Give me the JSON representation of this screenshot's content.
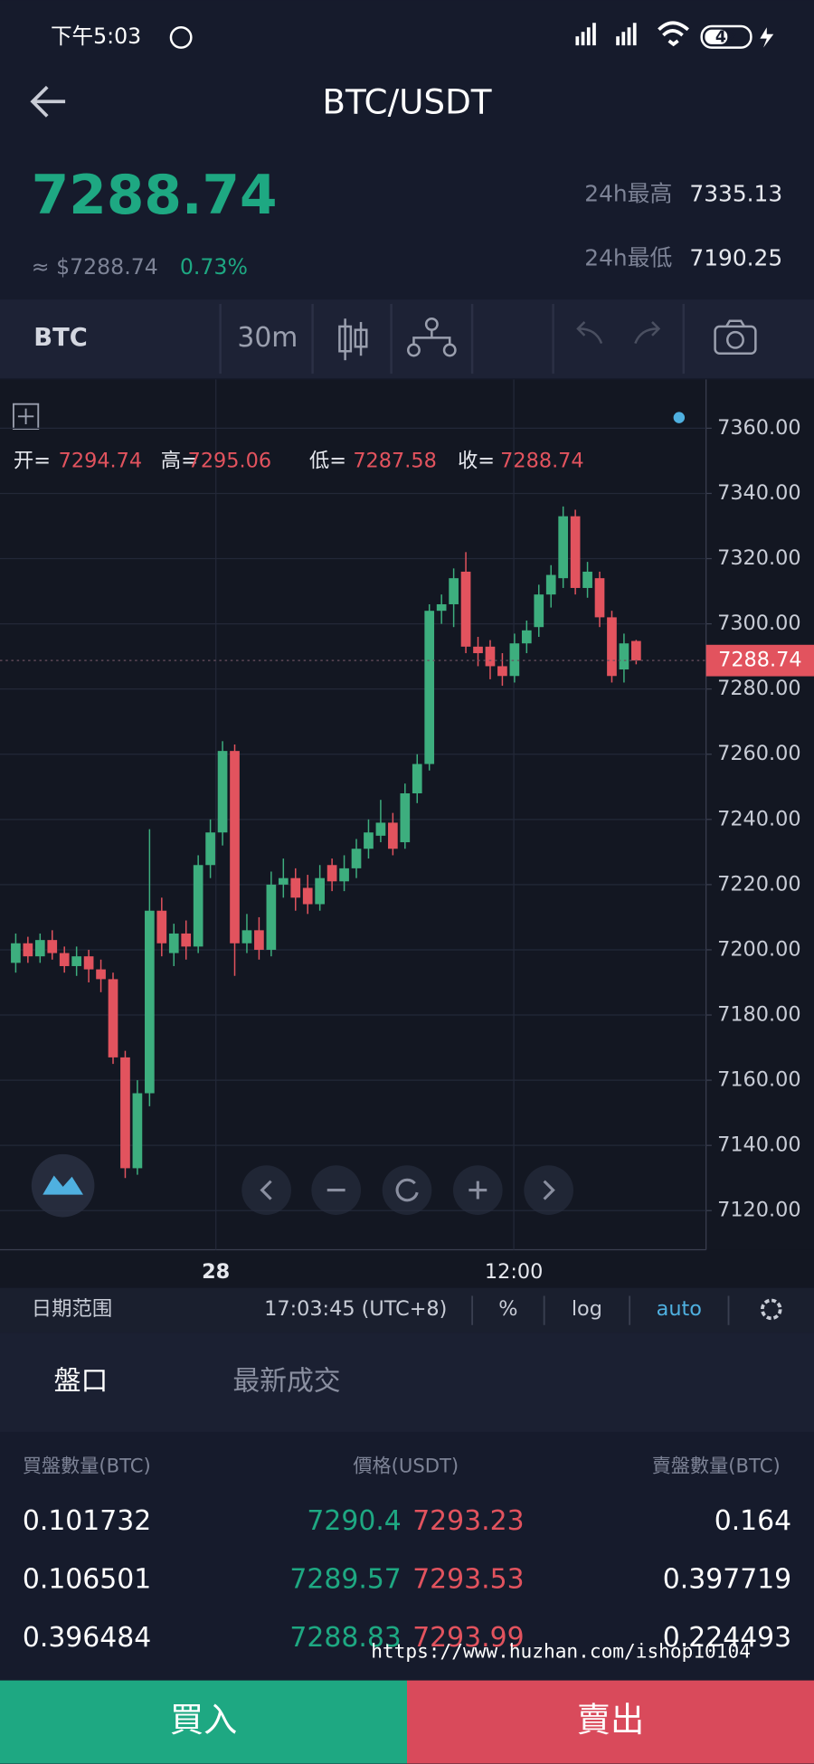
{
  "status_bar": {
    "time": "下午5:03",
    "battery": "42"
  },
  "header": {
    "title": "BTC/USDT"
  },
  "ticker": {
    "price": "7288.74",
    "usd": "≈ $7288.74",
    "change": "0.73%",
    "high_label": "24h最高",
    "high": "7335.13",
    "low_label": "24h最低",
    "low": "7190.25"
  },
  "toolbar": {
    "symbol": "BTC",
    "interval": "30m"
  },
  "chart": {
    "type": "candlestick",
    "ohlc_labels": [
      "开=",
      "高=",
      "低=",
      "收="
    ],
    "ohlc_values": [
      7294.74,
      7295.06,
      7287.58,
      7288.74
    ],
    "last_price": 7288.74,
    "ylim": [
      7108,
      7375
    ],
    "yticks": [
      {
        "value": 7120,
        "label": "7120.00"
      },
      {
        "value": 7140,
        "label": "7140.00"
      },
      {
        "value": 7160,
        "label": "7160.00"
      },
      {
        "value": 7180,
        "label": "7180.00"
      },
      {
        "value": 7200,
        "label": "7200.00"
      },
      {
        "value": 7220,
        "label": "7220.00"
      },
      {
        "value": 7240,
        "label": "7240.00"
      },
      {
        "value": 7260,
        "label": "7260.00"
      },
      {
        "value": 7280,
        "label": "7280.00"
      },
      {
        "value": 7300,
        "label": "7300.00"
      },
      {
        "value": 7320,
        "label": "7320.00"
      },
      {
        "value": 7340,
        "label": "7340.00"
      },
      {
        "value": 7360,
        "label": "7360.00"
      }
    ],
    "x_labels": [
      "28",
      "12:00"
    ],
    "up_color": "#3dae7e",
    "down_color": "#e2535e",
    "candles": {
      "open": [
        7196,
        7202,
        7198,
        7203,
        7199,
        7195,
        7198,
        7194,
        7191,
        7167,
        7133,
        7156,
        7212,
        7199,
        7205,
        7201,
        7226,
        7236,
        7261,
        7202,
        7206,
        7200,
        7220,
        7222,
        7219,
        7214,
        7226,
        7221,
        7225,
        7231,
        7235,
        7239,
        7233,
        7248,
        7257,
        7304,
        7306,
        7316,
        7293,
        7293,
        7287,
        7284,
        7294,
        7299,
        7309,
        7314,
        7333,
        7311,
        7314,
        7302,
        7286,
        7294.74
      ],
      "close": [
        7202,
        7198,
        7203,
        7199,
        7195,
        7198,
        7194,
        7191,
        7167,
        7133,
        7156,
        7212,
        7202,
        7205,
        7201,
        7226,
        7236,
        7261,
        7202,
        7206,
        7200,
        7220,
        7222,
        7216,
        7214,
        7222,
        7221,
        7225,
        7231,
        7236,
        7239,
        7231,
        7248,
        7257,
        7304,
        7306,
        7314,
        7293,
        7291,
        7287,
        7284,
        7294,
        7298,
        7309,
        7315,
        7333,
        7311,
        7316,
        7302,
        7284,
        7294,
        7288.74
      ],
      "high": [
        7205,
        7204,
        7205,
        7206,
        7201,
        7201,
        7200,
        7197,
        7193,
        7169,
        7160,
        7237,
        7216,
        7208,
        7209,
        7229,
        7240,
        7264,
        7263,
        7211,
        7210,
        7224,
        7228,
        7225,
        7223,
        7226,
        7228,
        7229,
        7234,
        7240,
        7246,
        7242,
        7251,
        7260,
        7306,
        7309,
        7317,
        7322,
        7296,
        7295,
        7291,
        7297,
        7301,
        7312,
        7318,
        7336,
        7335,
        7319,
        7316,
        7304,
        7297,
        7295.06
      ],
      "low": [
        7193,
        7196,
        7196,
        7197,
        7193,
        7192,
        7190,
        7187,
        7165,
        7130,
        7131,
        7152,
        7198,
        7195,
        7197,
        7199,
        7222,
        7232,
        7192,
        7199,
        7197,
        7198,
        7216,
        7212,
        7211,
        7212,
        7218,
        7218,
        7222,
        7228,
        7233,
        7229,
        7231,
        7245,
        7255,
        7300,
        7299,
        7291,
        7287,
        7283,
        7281,
        7282,
        7291,
        7296,
        7305,
        7311,
        7309,
        7308,
        7299,
        7282,
        7282,
        7287.58
      ]
    }
  },
  "chart_footer": {
    "range": "日期范围",
    "time": "17:03:45 (UTC+8)",
    "percent": "%",
    "log": "log",
    "auto": "auto"
  },
  "tabs": [
    "盤口",
    "最新成交"
  ],
  "order_book": {
    "headers": [
      "買盤數量(BTC)",
      "價格(USDT)",
      "賣盤數量(BTC)"
    ],
    "rows": [
      [
        "0.101732",
        "7290.4",
        "7293.23",
        "0.164"
      ],
      [
        "0.106501",
        "7289.57",
        "7293.53",
        "0.397719"
      ],
      [
        "0.396484",
        "7288.83",
        "7293.99",
        "0.224493"
      ]
    ]
  },
  "watermark": "https://www.huzhan.com/ishop10104",
  "buttons": {
    "buy": "買入",
    "sell": "賣出"
  }
}
